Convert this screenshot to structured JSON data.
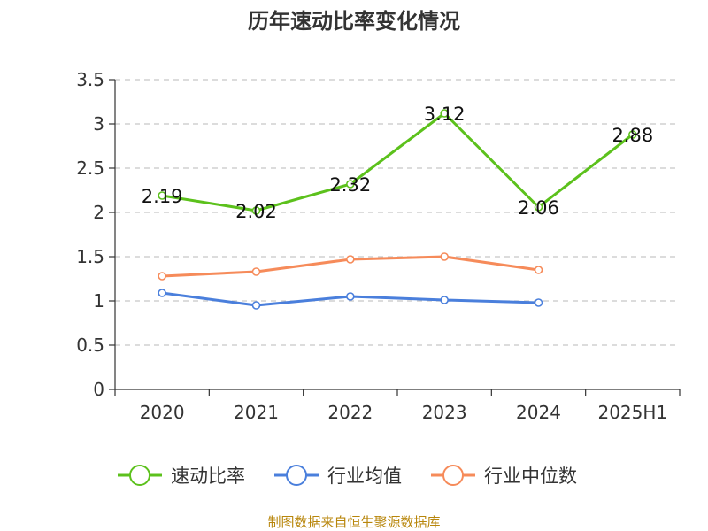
{
  "chart_data": {
    "type": "line",
    "title": "历年速动比率变化情况",
    "categories": [
      "2020",
      "2021",
      "2022",
      "2023",
      "2024",
      "2025H1"
    ],
    "ylim": [
      0,
      3.5
    ],
    "yticks": [
      "0",
      "0.5",
      "1",
      "1.5",
      "2",
      "2.5",
      "3",
      "3.5"
    ],
    "grid": true,
    "legend_position": "bottom",
    "series": [
      {
        "name": "速动比率",
        "color": "#5cc11c",
        "values": [
          2.19,
          2.02,
          2.32,
          3.12,
          2.06,
          2.88
        ],
        "labels": [
          "2.19",
          "2.02",
          "2.32",
          "3.12",
          "2.06",
          "2.88"
        ]
      },
      {
        "name": "行业均值",
        "color": "#4a7fdc",
        "values": [
          1.09,
          0.95,
          1.05,
          1.01,
          0.98,
          null
        ]
      },
      {
        "name": "行业中位数",
        "color": "#f68b5a",
        "values": [
          1.28,
          1.33,
          1.47,
          1.5,
          1.35,
          null
        ]
      }
    ]
  },
  "source": "制图数据来自恒生聚源数据库"
}
